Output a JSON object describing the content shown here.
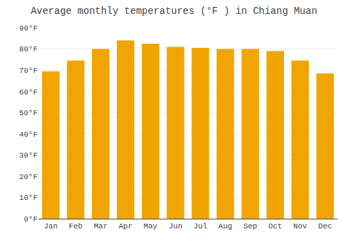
{
  "chart_data": {
    "type": "bar",
    "title": "Average monthly temperatures (°F ) in Chiang Muan",
    "categories": [
      "Jan",
      "Feb",
      "Mar",
      "Apr",
      "May",
      "Jun",
      "Jul",
      "Aug",
      "Sep",
      "Oct",
      "Nov",
      "Dec"
    ],
    "values": [
      69.5,
      74.5,
      80.0,
      84.0,
      82.5,
      81.0,
      80.5,
      80.0,
      80.0,
      79.0,
      74.5,
      68.5
    ],
    "color": "#F0A500",
    "ylim": [
      0,
      90
    ],
    "yticks": [
      {
        "value": 0,
        "label": "0°F"
      },
      {
        "value": 10,
        "label": "10°F"
      },
      {
        "value": 20,
        "label": "20°F"
      },
      {
        "value": 30,
        "label": "30°F"
      },
      {
        "value": 40,
        "label": "40°F"
      },
      {
        "value": 50,
        "label": "50°F"
      },
      {
        "value": 60,
        "label": "60°F"
      },
      {
        "value": 70,
        "label": "70°F"
      },
      {
        "value": 80,
        "label": "80°F"
      },
      {
        "value": 90,
        "label": "90°F"
      }
    ],
    "grid": true
  }
}
